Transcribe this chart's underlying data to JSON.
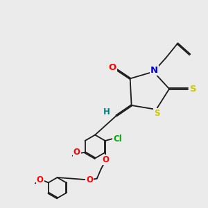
{
  "background_color": "#ebebeb",
  "bond_color": "#1a1a1a",
  "atom_colors": {
    "O": "#ff0000",
    "N": "#0000cc",
    "S": "#cccc00",
    "Cl": "#00aa00",
    "H": "#008080",
    "C": "#1a1a1a"
  },
  "font_size": 8.5,
  "lw": 1.3,
  "dbo": 0.008
}
